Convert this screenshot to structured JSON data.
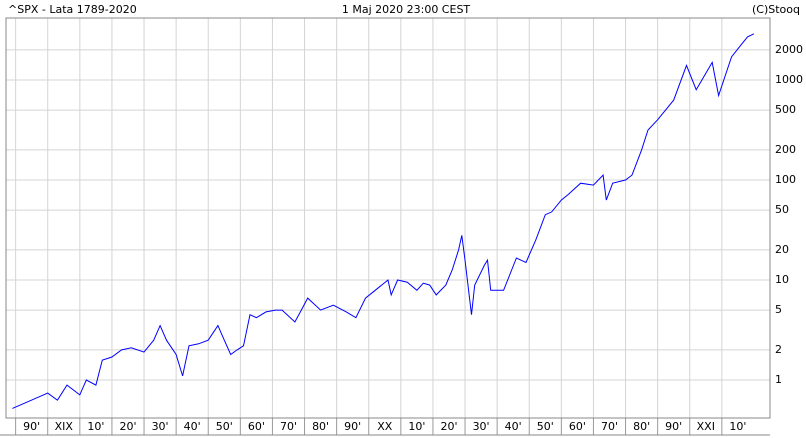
{
  "chart_data": {
    "type": "line",
    "title": "^SPX - Lata 1789-2020",
    "subtitle": "1 Maj 2020 23:00 CEST",
    "source": "(C)Stooq",
    "log_scale": true,
    "grid": true,
    "x": [
      1789,
      1795,
      1800,
      1803,
      1806,
      1810,
      1812,
      1815,
      1817,
      1820,
      1823,
      1826,
      1830,
      1833,
      1835,
      1837,
      1840,
      1842,
      1844,
      1847,
      1850,
      1853,
      1855,
      1857,
      1859,
      1861,
      1863,
      1865,
      1868,
      1871,
      1873,
      1877,
      1879,
      1881,
      1885,
      1889,
      1893,
      1896,
      1899,
      1902,
      1906,
      1907,
      1909,
      1912,
      1915,
      1917,
      1919,
      1921,
      1924,
      1926,
      1928,
      1929,
      1930,
      1932,
      1933,
      1936,
      1937,
      1938,
      1942,
      1946,
      1949,
      1952,
      1955,
      1957,
      1960,
      1962,
      1966,
      1970,
      1973,
      1974,
      1976,
      1980,
      1982,
      1985,
      1987,
      1990,
      1995,
      1999,
      2002,
      2007,
      2009,
      2013,
      2015,
      2018,
      2020
    ],
    "series": [
      {
        "name": "^SPX",
        "color": "#0000ff",
        "values": [
          0.52,
          0.63,
          0.74,
          0.63,
          0.89,
          0.71,
          1.0,
          0.89,
          1.58,
          1.7,
          2.0,
          2.1,
          1.9,
          2.5,
          3.5,
          2.5,
          1.8,
          1.1,
          2.2,
          2.3,
          2.5,
          3.5,
          2.5,
          1.8,
          2.0,
          2.2,
          4.5,
          4.2,
          4.8,
          5.0,
          5.0,
          3.8,
          5.0,
          6.6,
          5.0,
          5.6,
          4.8,
          4.2,
          6.6,
          7.9,
          10,
          7.1,
          10,
          9.5,
          7.9,
          9.3,
          8.9,
          7.1,
          8.9,
          12.6,
          20,
          28,
          15.8,
          4.5,
          8.9,
          14,
          15.8,
          7.9,
          7.9,
          16.6,
          15,
          25,
          45,
          48,
          63,
          71,
          93,
          89,
          112,
          63,
          93,
          100,
          112,
          200,
          316,
          400,
          630,
          1400,
          800,
          1500,
          700,
          1700,
          2050,
          2700,
          2900
        ]
      }
    ],
    "xlim": [
      1787,
      2025
    ],
    "xticks": [
      {
        "value": 1790,
        "label": "90'"
      },
      {
        "value": 1800,
        "label": "XIX"
      },
      {
        "value": 1810,
        "label": "10'"
      },
      {
        "value": 1820,
        "label": "20'"
      },
      {
        "value": 1830,
        "label": "30'"
      },
      {
        "value": 1840,
        "label": "40'"
      },
      {
        "value": 1850,
        "label": "50'"
      },
      {
        "value": 1860,
        "label": "60'"
      },
      {
        "value": 1870,
        "label": "70'"
      },
      {
        "value": 1880,
        "label": "80'"
      },
      {
        "value": 1890,
        "label": "90'"
      },
      {
        "value": 1900,
        "label": "XX"
      },
      {
        "value": 1910,
        "label": "10'"
      },
      {
        "value": 1920,
        "label": "20'"
      },
      {
        "value": 1930,
        "label": "30'"
      },
      {
        "value": 1940,
        "label": "40'"
      },
      {
        "value": 1950,
        "label": "50'"
      },
      {
        "value": 1960,
        "label": "60'"
      },
      {
        "value": 1970,
        "label": "70'"
      },
      {
        "value": 1980,
        "label": "80'"
      },
      {
        "value": 1990,
        "label": "90'"
      },
      {
        "value": 2000,
        "label": "XXI"
      },
      {
        "value": 2010,
        "label": "10'"
      }
    ],
    "ylim": [
      0.417,
      4170
    ],
    "yticks": [
      1,
      2,
      5,
      10,
      20,
      50,
      100,
      200,
      500,
      1000,
      2000
    ]
  }
}
